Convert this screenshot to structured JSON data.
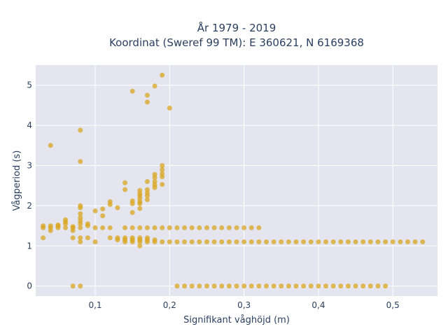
{
  "chart_data": {
    "type": "scatter",
    "title_line1": "År 1979 - 2019",
    "title_line2": "Koordinat (Sweref 99 TM): E 360621, N 6169368",
    "xlabel": "Signifikant våghöjd (m)",
    "ylabel": "Vågperiod (s)",
    "xlim": [
      0.02,
      0.56
    ],
    "ylim": [
      -0.25,
      5.5
    ],
    "x_ticks": [
      0.1,
      0.2,
      0.3,
      0.4,
      0.5
    ],
    "x_tick_labels": [
      "0,1",
      "0,2",
      "0,3",
      "0,4",
      "0,5"
    ],
    "y_ticks": [
      0,
      1,
      2,
      3,
      4,
      5
    ],
    "y_tick_labels": [
      "0",
      "1",
      "2",
      "3",
      "4",
      "5"
    ],
    "grid": true,
    "marker_color": "#daa520",
    "plot_background": "#e5e5f0",
    "points": [
      [
        0.03,
        1.2
      ],
      [
        0.03,
        1.45
      ],
      [
        0.03,
        1.5
      ],
      [
        0.04,
        1.45
      ],
      [
        0.04,
        1.5
      ],
      [
        0.04,
        3.5
      ],
      [
        0.04,
        1.38
      ],
      [
        0.05,
        1.45
      ],
      [
        0.05,
        1.5
      ],
      [
        0.05,
        1.52
      ],
      [
        0.06,
        1.45
      ],
      [
        0.06,
        1.55
      ],
      [
        0.06,
        1.6
      ],
      [
        0.06,
        1.65
      ],
      [
        0.07,
        1.45
      ],
      [
        0.07,
        1.48
      ],
      [
        0.07,
        1.38
      ],
      [
        0.07,
        1.2
      ],
      [
        0.07,
        0.0
      ],
      [
        0.08,
        0.0
      ],
      [
        0.08,
        1.1
      ],
      [
        0.08,
        1.2
      ],
      [
        0.08,
        1.45
      ],
      [
        0.08,
        1.55
      ],
      [
        0.08,
        1.62
      ],
      [
        0.08,
        1.7
      ],
      [
        0.08,
        1.8
      ],
      [
        0.08,
        1.95
      ],
      [
        0.08,
        2.0
      ],
      [
        0.08,
        3.1
      ],
      [
        0.08,
        3.88
      ],
      [
        0.09,
        1.2
      ],
      [
        0.09,
        1.5
      ],
      [
        0.09,
        1.55
      ],
      [
        0.1,
        1.1
      ],
      [
        0.1,
        1.45
      ],
      [
        0.1,
        1.87
      ],
      [
        0.11,
        1.45
      ],
      [
        0.11,
        1.75
      ],
      [
        0.11,
        1.92
      ],
      [
        0.12,
        1.2
      ],
      [
        0.12,
        1.45
      ],
      [
        0.12,
        2.03
      ],
      [
        0.12,
        2.1
      ],
      [
        0.13,
        1.15
      ],
      [
        0.13,
        1.2
      ],
      [
        0.13,
        1.95
      ],
      [
        0.14,
        1.1
      ],
      [
        0.14,
        1.15
      ],
      [
        0.14,
        1.2
      ],
      [
        0.14,
        1.45
      ],
      [
        0.14,
        2.4
      ],
      [
        0.14,
        2.57
      ],
      [
        0.15,
        1.1
      ],
      [
        0.15,
        1.15
      ],
      [
        0.15,
        1.2
      ],
      [
        0.15,
        1.45
      ],
      [
        0.15,
        1.83
      ],
      [
        0.15,
        2.05
      ],
      [
        0.15,
        2.12
      ],
      [
        0.15,
        4.85
      ],
      [
        0.16,
        1.0
      ],
      [
        0.16,
        1.1
      ],
      [
        0.16,
        1.15
      ],
      [
        0.16,
        1.2
      ],
      [
        0.16,
        1.45
      ],
      [
        0.16,
        1.93
      ],
      [
        0.16,
        2.05
      ],
      [
        0.16,
        2.1
      ],
      [
        0.16,
        2.18
      ],
      [
        0.16,
        2.25
      ],
      [
        0.16,
        2.3
      ],
      [
        0.16,
        2.38
      ],
      [
        0.17,
        1.1
      ],
      [
        0.17,
        1.15
      ],
      [
        0.17,
        1.2
      ],
      [
        0.17,
        1.45
      ],
      [
        0.17,
        2.15
      ],
      [
        0.17,
        2.25
      ],
      [
        0.17,
        2.32
      ],
      [
        0.17,
        2.4
      ],
      [
        0.17,
        2.6
      ],
      [
        0.17,
        4.58
      ],
      [
        0.17,
        4.75
      ],
      [
        0.18,
        1.1
      ],
      [
        0.18,
        1.15
      ],
      [
        0.18,
        1.45
      ],
      [
        0.18,
        2.45
      ],
      [
        0.18,
        2.52
      ],
      [
        0.18,
        2.6
      ],
      [
        0.18,
        2.7
      ],
      [
        0.18,
        2.78
      ],
      [
        0.18,
        4.98
      ],
      [
        0.19,
        1.1
      ],
      [
        0.19,
        1.45
      ],
      [
        0.19,
        2.53
      ],
      [
        0.19,
        2.72
      ],
      [
        0.19,
        2.8
      ],
      [
        0.19,
        2.9
      ],
      [
        0.19,
        3.0
      ],
      [
        0.19,
        5.25
      ],
      [
        0.2,
        1.1
      ],
      [
        0.2,
        1.45
      ],
      [
        0.2,
        4.43
      ],
      [
        0.21,
        0.0
      ],
      [
        0.21,
        1.1
      ],
      [
        0.21,
        1.45
      ],
      [
        0.22,
        0.0
      ],
      [
        0.22,
        1.1
      ],
      [
        0.22,
        1.45
      ],
      [
        0.23,
        0.0
      ],
      [
        0.23,
        1.1
      ],
      [
        0.23,
        1.45
      ],
      [
        0.24,
        0.0
      ],
      [
        0.24,
        1.1
      ],
      [
        0.24,
        1.45
      ],
      [
        0.25,
        0.0
      ],
      [
        0.25,
        1.1
      ],
      [
        0.25,
        1.45
      ],
      [
        0.26,
        0.0
      ],
      [
        0.26,
        1.1
      ],
      [
        0.26,
        1.45
      ],
      [
        0.27,
        0.0
      ],
      [
        0.27,
        1.1
      ],
      [
        0.27,
        1.45
      ],
      [
        0.28,
        0.0
      ],
      [
        0.28,
        1.1
      ],
      [
        0.28,
        1.45
      ],
      [
        0.29,
        0.0
      ],
      [
        0.29,
        1.1
      ],
      [
        0.29,
        1.45
      ],
      [
        0.3,
        0.0
      ],
      [
        0.3,
        1.1
      ],
      [
        0.3,
        1.45
      ],
      [
        0.31,
        0.0
      ],
      [
        0.31,
        1.1
      ],
      [
        0.31,
        1.45
      ],
      [
        0.32,
        0.0
      ],
      [
        0.32,
        1.1
      ],
      [
        0.32,
        1.45
      ],
      [
        0.33,
        0.0
      ],
      [
        0.33,
        1.1
      ],
      [
        0.34,
        0.0
      ],
      [
        0.34,
        1.1
      ],
      [
        0.35,
        0.0
      ],
      [
        0.35,
        1.1
      ],
      [
        0.36,
        0.0
      ],
      [
        0.36,
        1.1
      ],
      [
        0.37,
        0.0
      ],
      [
        0.37,
        1.1
      ],
      [
        0.38,
        0.0
      ],
      [
        0.38,
        1.1
      ],
      [
        0.39,
        0.0
      ],
      [
        0.39,
        1.1
      ],
      [
        0.4,
        0.0
      ],
      [
        0.4,
        1.1
      ],
      [
        0.41,
        0.0
      ],
      [
        0.41,
        1.1
      ],
      [
        0.42,
        0.0
      ],
      [
        0.42,
        1.1
      ],
      [
        0.43,
        0.0
      ],
      [
        0.43,
        1.1
      ],
      [
        0.44,
        0.0
      ],
      [
        0.44,
        1.1
      ],
      [
        0.45,
        0.0
      ],
      [
        0.45,
        1.1
      ],
      [
        0.46,
        0.0
      ],
      [
        0.46,
        1.1
      ],
      [
        0.47,
        0.0
      ],
      [
        0.47,
        1.1
      ],
      [
        0.48,
        0.0
      ],
      [
        0.48,
        1.1
      ],
      [
        0.49,
        0.0
      ],
      [
        0.49,
        1.1
      ],
      [
        0.5,
        1.1
      ],
      [
        0.51,
        1.1
      ],
      [
        0.52,
        1.1
      ],
      [
        0.53,
        1.1
      ],
      [
        0.54,
        1.1
      ]
    ]
  }
}
